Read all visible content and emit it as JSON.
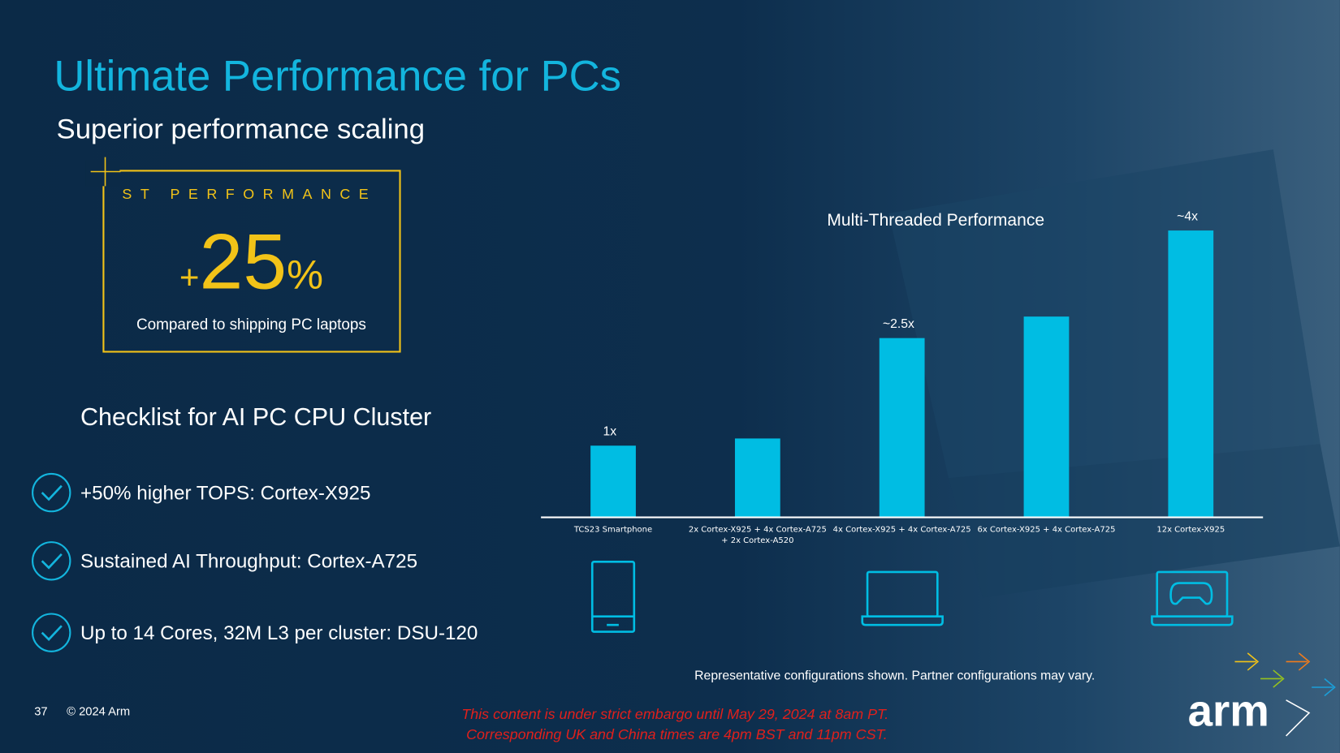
{
  "title": "Ultimate Performance for PCs",
  "subtitle": "Superior performance scaling",
  "highlight": {
    "label": "ST PERFORMANCE",
    "sign": "+",
    "number": "25",
    "unit": "%",
    "caption": "Compared to shipping PC laptops"
  },
  "checklist": {
    "title": "Checklist for AI PC CPU Cluster",
    "items": [
      "+50% higher TOPS: Cortex-X925",
      "Sustained AI Throughput: Cortex-A725",
      "Up to 14 Cores, 32M L3 per cluster: DSU-120"
    ]
  },
  "chart_data": {
    "type": "bar",
    "title": "Multi-Threaded Performance",
    "categories": [
      "TCS23 Smartphone",
      "2x Cortex-X925 + 4x Cortex-A725 + 2x Cortex-A520",
      "4x Cortex-X925 + 4x Cortex-A725",
      "6x Cortex-X925 + 4x Cortex-A725",
      "12x Cortex-X925"
    ],
    "values": [
      1,
      1.1,
      2.5,
      2.8,
      4
    ],
    "value_labels": [
      "1x",
      null,
      "~2.5x",
      null,
      "~4x"
    ],
    "color": "#00bde3",
    "note": "Representative configurations shown. Partner configurations may vary."
  },
  "footer": {
    "page": "37",
    "copyright": "© 2024 Arm",
    "embargo": [
      "This content is under strict embargo until May 29, 2024 at 8am PT.",
      "Corresponding UK and China times are 4pm BST and 11pm CST."
    ],
    "logo": "arm"
  }
}
